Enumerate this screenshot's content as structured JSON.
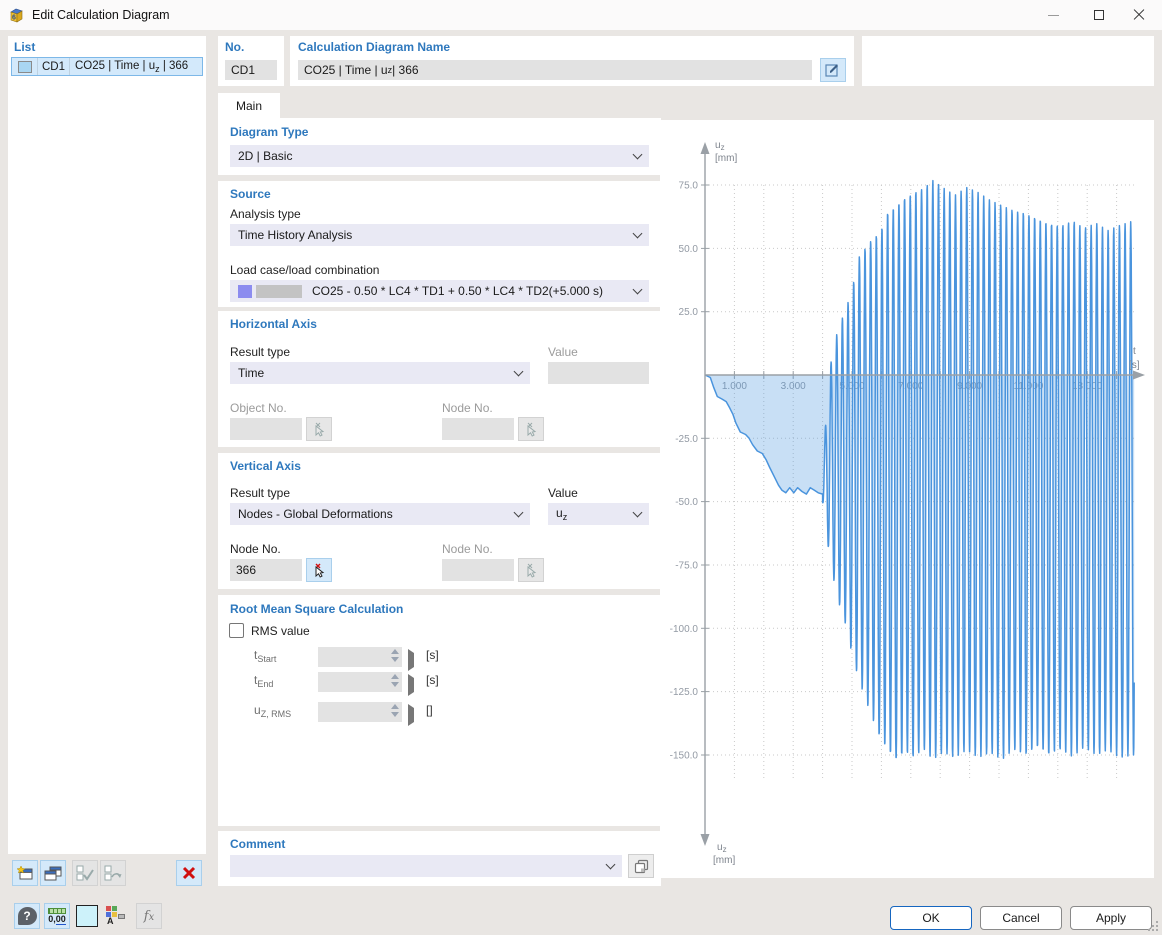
{
  "window": {
    "title": "Edit Calculation Diagram",
    "icon_glyph": "6"
  },
  "list_panel": {
    "header": "List",
    "row": {
      "id": "CD1",
      "name_pre": "CO25 | Time | u",
      "name_sub": "z",
      "name_post": " | 366",
      "chip_color": "#a9d6f2"
    }
  },
  "no_panel": {
    "label": "No.",
    "value": "CD1"
  },
  "name_panel": {
    "label": "Calculation Diagram Name",
    "value_pre": "CO25 | Time | u",
    "value_sub": "z",
    "value_post": " | 366"
  },
  "tabs": {
    "main": "Main"
  },
  "form": {
    "diagram_type": {
      "header": "Diagram Type",
      "value": "2D | Basic"
    },
    "source": {
      "header": "Source",
      "analysis_type_label": "Analysis type",
      "analysis_type_value": "Time History Analysis",
      "load_case_label": "Load case/load combination",
      "load_case_value": "CO25 - 0.50 * LC4 * TD1 + 0.50 * LC4 * TD2(+5.000 s)",
      "chip_color_1": "#8c8cef",
      "chip_color_2": "#c3c3c3"
    },
    "horizontal_axis": {
      "header": "Horizontal Axis",
      "result_type_label": "Result type",
      "result_type_value": "Time",
      "value_label": "Value",
      "value_value": "",
      "object_no_label": "Object No.",
      "object_no_value": "",
      "node_no_label": "Node No.",
      "node_no_value": ""
    },
    "vertical_axis": {
      "header": "Vertical Axis",
      "result_type_label": "Result type",
      "result_type_value": "Nodes - Global Deformations",
      "value_label": "Value",
      "value_base": "u",
      "value_sub": "z",
      "node_no_label": "Node No.",
      "node_no_value": "366",
      "node_no2_label": "Node No.",
      "node_no2_value": ""
    },
    "rms": {
      "header": "Root Mean Square Calculation",
      "checkbox_label": "RMS value",
      "rows": [
        {
          "label_base": "t",
          "label_sub": "Start",
          "value": "",
          "unit": "[s]"
        },
        {
          "label_base": "t",
          "label_sub": "End",
          "value": "",
          "unit": "[s]"
        },
        {
          "label_base": "u",
          "label_sub": "Z, RMS",
          "value": "",
          "unit": "[]"
        }
      ]
    },
    "comment": {
      "header": "Comment",
      "value": ""
    }
  },
  "footer": {
    "ok": "OK",
    "cancel": "Cancel",
    "apply": "Apply"
  },
  "icons": {
    "help_glyph": "?",
    "units_glyph_a": "0,",
    "units_glyph_b": "00",
    "display_glyph": "A",
    "formula_glyph_a": "f",
    "formula_glyph_b": "x",
    "swatch_color": "#cdf2fa"
  },
  "chart_data": {
    "type": "line",
    "title": "",
    "x_axis": {
      "label_base": "t",
      "label_unit": "[s]",
      "range": [
        0,
        15.2
      ],
      "grid_step": 1,
      "ticks": [
        1,
        3,
        5,
        7,
        9,
        11,
        13
      ],
      "tick_labels": [
        "1.000",
        "3.000",
        "5.000",
        "7.000",
        "9.000",
        "11.000",
        "13.000"
      ]
    },
    "y_axis": {
      "label_base": "u",
      "label_sub": "z",
      "label_unit": "[mm]",
      "range": [
        -165,
        90
      ],
      "ticks": [
        75,
        50,
        25,
        -25,
        -50,
        -75,
        -100,
        -125,
        -150
      ],
      "tick_labels": [
        "75.0",
        "50.0",
        "25.0",
        "-25.0",
        "-50.0",
        "-75.0",
        "-100.0",
        "-125.0",
        "-150.0"
      ]
    },
    "grid": "dotted",
    "legend": "none",
    "colors": {
      "line": "#4a94dd",
      "fill_opacity": 0.3,
      "axis": "#9aa0a6",
      "grid": "#c9c9c9",
      "tick_text": "#939aa4",
      "axis_label": "#7d838c"
    },
    "series": {
      "name": "uz(t)",
      "initial_curve": [
        [
          0,
          0
        ],
        [
          0.18,
          -1
        ],
        [
          0.3,
          -5
        ],
        [
          0.42,
          -8.5
        ],
        [
          0.58,
          -9.5
        ],
        [
          0.72,
          -10.5
        ],
        [
          0.84,
          -13
        ],
        [
          0.95,
          -15.5
        ],
        [
          1.05,
          -19
        ],
        [
          1.2,
          -22.5
        ],
        [
          1.38,
          -23.5
        ],
        [
          1.5,
          -25
        ],
        [
          1.62,
          -27.5
        ],
        [
          1.78,
          -30
        ],
        [
          1.95,
          -31
        ],
        [
          2.08,
          -33.5
        ],
        [
          2.2,
          -36.5
        ],
        [
          2.35,
          -40
        ],
        [
          2.5,
          -43.5
        ],
        [
          2.62,
          -45.5
        ],
        [
          2.75,
          -46.5
        ],
        [
          2.88,
          -44.5
        ],
        [
          3.02,
          -46.5
        ],
        [
          3.15,
          -44.5
        ],
        [
          3.3,
          -46
        ],
        [
          3.45,
          -47
        ],
        [
          3.58,
          -44.5
        ],
        [
          3.72,
          -45.5
        ],
        [
          3.85,
          -46.5
        ],
        [
          4.0,
          -47
        ]
      ],
      "oscillation": {
        "t_start": 4.0,
        "t_end": 14.6,
        "frequency_hz": 5.2,
        "envelope_pos": [
          [
            4.0,
            -35
          ],
          [
            4.25,
            3
          ],
          [
            4.5,
            17
          ],
          [
            4.75,
            25
          ],
          [
            5.0,
            33
          ],
          [
            5.2,
            46
          ],
          [
            5.45,
            50
          ],
          [
            5.7,
            54
          ],
          [
            5.95,
            56
          ],
          [
            6.2,
            64
          ],
          [
            6.5,
            67
          ],
          [
            6.8,
            70
          ],
          [
            7.1,
            72
          ],
          [
            7.45,
            74
          ],
          [
            7.75,
            77
          ],
          [
            8.1,
            74
          ],
          [
            8.5,
            71
          ],
          [
            8.9,
            74
          ],
          [
            9.3,
            72
          ],
          [
            9.7,
            69
          ],
          [
            10.1,
            67
          ],
          [
            10.5,
            65
          ],
          [
            10.9,
            64
          ],
          [
            11.3,
            62
          ],
          [
            11.7,
            60
          ],
          [
            12.1,
            59
          ],
          [
            12.5,
            61
          ],
          [
            12.9,
            58
          ],
          [
            13.3,
            60
          ],
          [
            13.7,
            57
          ],
          [
            14.1,
            59
          ],
          [
            14.6,
            61
          ]
        ],
        "envelope_neg": [
          [
            4.0,
            -50
          ],
          [
            4.25,
            -73
          ],
          [
            4.5,
            -88
          ],
          [
            4.75,
            -97
          ],
          [
            5.0,
            -110
          ],
          [
            5.2,
            -119
          ],
          [
            5.45,
            -128
          ],
          [
            5.7,
            -136
          ],
          [
            5.95,
            -143
          ],
          [
            6.2,
            -148
          ],
          [
            6.5,
            -152
          ],
          [
            6.8,
            -149
          ],
          [
            7.1,
            -151
          ],
          [
            7.45,
            -148
          ],
          [
            7.75,
            -152
          ],
          [
            8.1,
            -149
          ],
          [
            8.5,
            -151
          ],
          [
            8.9,
            -148
          ],
          [
            9.3,
            -151
          ],
          [
            9.7,
            -149
          ],
          [
            10.1,
            -152
          ],
          [
            10.5,
            -148
          ],
          [
            10.9,
            -150
          ],
          [
            11.3,
            -147
          ],
          [
            11.7,
            -150
          ],
          [
            12.1,
            -148
          ],
          [
            12.5,
            -151
          ],
          [
            12.9,
            -147
          ],
          [
            13.3,
            -150
          ],
          [
            13.7,
            -148
          ],
          [
            14.1,
            -151
          ],
          [
            14.6,
            -150
          ]
        ]
      }
    }
  }
}
